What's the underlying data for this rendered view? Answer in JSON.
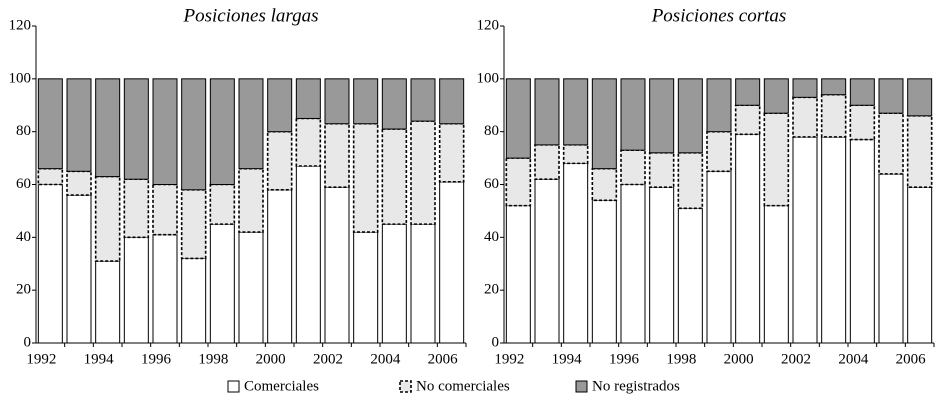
{
  "chart_data": [
    {
      "type": "bar",
      "stacked": true,
      "title": "Posiciones largas",
      "categories": [
        "1992",
        null,
        "1994",
        null,
        "1996",
        null,
        "1998",
        null,
        "2000",
        null,
        "2002",
        null,
        "2004",
        null,
        "2006"
      ],
      "series": [
        {
          "name": "Comerciales",
          "color": "#ffffff",
          "border": "solid",
          "values": [
            60,
            56,
            31,
            40,
            41,
            32,
            45,
            42,
            58,
            67,
            59,
            42,
            45,
            45,
            61
          ]
        },
        {
          "name": "No comerciales",
          "color": "#e8e8e8",
          "border": "dashed",
          "values": [
            6,
            9,
            32,
            22,
            19,
            26,
            15,
            24,
            22,
            18,
            24,
            41,
            36,
            39,
            22
          ]
        },
        {
          "name": "No registrados",
          "color": "#999999",
          "border": "solid",
          "values": [
            34,
            35,
            37,
            38,
            40,
            42,
            40,
            34,
            20,
            15,
            17,
            17,
            19,
            16,
            17
          ]
        }
      ],
      "ylim": [
        0,
        120
      ],
      "yticks": [
        0,
        20,
        40,
        60,
        80,
        100,
        120
      ]
    },
    {
      "type": "bar",
      "stacked": true,
      "title": "Posiciones cortas",
      "categories": [
        "1992",
        null,
        "1994",
        null,
        "1996",
        null,
        "1998",
        null,
        "2000",
        null,
        "2002",
        null,
        "2004",
        null,
        "2006"
      ],
      "series": [
        {
          "name": "Comerciales",
          "color": "#ffffff",
          "border": "solid",
          "values": [
            52,
            62,
            68,
            54,
            60,
            59,
            51,
            65,
            79,
            52,
            78,
            78,
            77,
            64,
            59
          ]
        },
        {
          "name": "No comerciales",
          "color": "#e8e8e8",
          "border": "dashed",
          "values": [
            18,
            13,
            7,
            12,
            13,
            13,
            21,
            15,
            11,
            35,
            15,
            16,
            13,
            23,
            27
          ]
        },
        {
          "name": "No registrados",
          "color": "#999999",
          "border": "solid",
          "values": [
            30,
            25,
            25,
            34,
            27,
            28,
            28,
            20,
            10,
            13,
            7,
            6,
            10,
            13,
            14
          ]
        }
      ],
      "ylim": [
        0,
        120
      ],
      "yticks": [
        0,
        20,
        40,
        60,
        80,
        100,
        120
      ]
    }
  ]
}
